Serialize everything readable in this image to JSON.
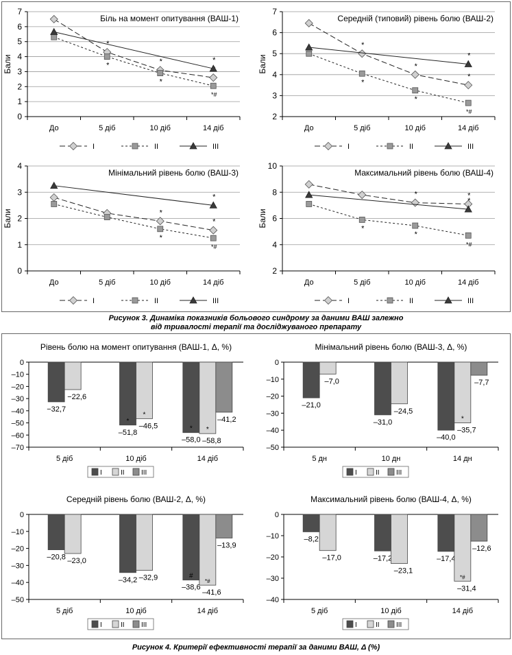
{
  "figure3": {
    "caption_line1": "Рисунок 3. Динаміка показників больового синдрому за даними ВАШ залежно",
    "caption_line2": "від тривалості терапії та досліджуваного препарату"
  },
  "figure4": {
    "caption": "Рисунок 4. Критерії ефективності терапії за даними ВАШ, Δ (%)"
  },
  "chart_data": [
    {
      "type": "line",
      "title": "Біль на момент опитування (ВАШ-1)",
      "ylabel": "Бали",
      "ylim": [
        0,
        7
      ],
      "yticks": [
        0,
        1,
        2,
        3,
        4,
        5,
        6,
        7
      ],
      "categories": [
        "До",
        "5 діб",
        "10 діб",
        "14 діб"
      ],
      "legend": "bottom",
      "grid": true,
      "series": [
        {
          "name": "I",
          "values": [
            6.5,
            4.3,
            3.1,
            2.6
          ],
          "marks": [
            "",
            "*",
            "*",
            "*"
          ]
        },
        {
          "name": "II",
          "values": [
            5.3,
            4.0,
            2.9,
            2.05
          ],
          "marks": [
            "",
            "*",
            "*",
            "*#"
          ]
        },
        {
          "name": "III",
          "values": [
            5.65,
            null,
            null,
            3.2
          ],
          "marks": [
            "",
            "",
            "",
            "*"
          ]
        }
      ]
    },
    {
      "type": "line",
      "title": "Середній (типовий) рівень болю (ВАШ-2)",
      "ylabel": "Бали",
      "ylim": [
        2,
        7
      ],
      "yticks": [
        2,
        3,
        4,
        5,
        6,
        7
      ],
      "categories": [
        "До",
        "5 діб",
        "10 діб",
        "14 діб"
      ],
      "legend": "bottom",
      "grid": true,
      "series": [
        {
          "name": "I",
          "values": [
            6.45,
            5.0,
            4.0,
            3.5
          ],
          "marks": [
            "",
            "*",
            "*",
            "*"
          ]
        },
        {
          "name": "II",
          "values": [
            5.0,
            4.05,
            3.25,
            2.65
          ],
          "marks": [
            "",
            "*",
            "*",
            "*#"
          ]
        },
        {
          "name": "III",
          "values": [
            5.3,
            null,
            null,
            4.5
          ],
          "marks": [
            "",
            "",
            "",
            "*"
          ]
        }
      ]
    },
    {
      "type": "line",
      "title": "Мінімальний рівень болю (ВАШ-3)",
      "ylabel": "Бали",
      "ylim": [
        0,
        4
      ],
      "yticks": [
        0,
        1,
        2,
        3,
        4
      ],
      "categories": [
        "До",
        "5 діб",
        "10 діб",
        "14 діб"
      ],
      "legend": "bottom",
      "grid": true,
      "series": [
        {
          "name": "I",
          "values": [
            2.8,
            2.2,
            1.9,
            1.55
          ],
          "marks": [
            "",
            "",
            "*",
            "*"
          ]
        },
        {
          "name": "II",
          "values": [
            2.55,
            2.05,
            1.6,
            1.25
          ],
          "marks": [
            "",
            "",
            "*",
            "*#"
          ]
        },
        {
          "name": "III",
          "values": [
            3.25,
            null,
            null,
            2.5
          ],
          "marks": [
            "",
            "",
            "",
            "*"
          ]
        }
      ]
    },
    {
      "type": "line",
      "title": "Максимальний рівень болю (ВАШ-4)",
      "ylabel": "Бали",
      "ylim": [
        2,
        10
      ],
      "yticks": [
        2,
        4,
        6,
        8,
        10
      ],
      "categories": [
        "До",
        "5 діб",
        "10 діб",
        "14 діб"
      ],
      "legend": "bottom",
      "grid": true,
      "series": [
        {
          "name": "I",
          "values": [
            8.6,
            7.8,
            7.2,
            7.1
          ],
          "marks": [
            "",
            "",
            "*",
            "*"
          ]
        },
        {
          "name": "II",
          "values": [
            7.1,
            5.9,
            5.45,
            4.7
          ],
          "marks": [
            "",
            "*",
            "*",
            "*#"
          ]
        },
        {
          "name": "III",
          "values": [
            7.8,
            null,
            null,
            6.7
          ],
          "marks": [
            "",
            "",
            "",
            "*"
          ]
        }
      ]
    },
    {
      "type": "bar",
      "title": "Рівень болю на момент опитування (ВАШ-1, Δ, %)",
      "ylim": [
        -70,
        0
      ],
      "yticks": [
        0,
        -10,
        -20,
        -30,
        -40,
        -50,
        -60,
        -70
      ],
      "categories": [
        "5 діб",
        "10 діб",
        "14 діб"
      ],
      "legend": "bottom",
      "series": [
        {
          "name": "I",
          "values": [
            -32.7,
            -51.8,
            -58.0
          ],
          "labels": [
            "−32,7",
            "–51,8",
            "–58,0"
          ],
          "marks": [
            "",
            "*",
            "*"
          ]
        },
        {
          "name": "II",
          "values": [
            -22.6,
            -46.5,
            -58.8
          ],
          "labels": [
            "−22,6",
            "–46,5",
            "–58,8"
          ],
          "marks": [
            "",
            "*",
            "*"
          ]
        },
        {
          "name": "III",
          "values": [
            null,
            null,
            -41.2
          ],
          "labels": [
            "",
            "",
            "–41,2"
          ],
          "marks": [
            "",
            "",
            ""
          ]
        }
      ]
    },
    {
      "type": "bar",
      "title": "Мінімальний рівень болю (ВАШ-3, Δ, %)",
      "ylim": [
        -50,
        0
      ],
      "yticks": [
        0,
        -10,
        -20,
        -30,
        -40,
        -50
      ],
      "categories": [
        "5 дн",
        "10 дн",
        "14 дн"
      ],
      "legend": "bottom",
      "series": [
        {
          "name": "I",
          "values": [
            -21.0,
            -31.0,
            -40.0
          ],
          "labels": [
            "–21,0",
            "–31,0",
            "–40,0"
          ],
          "marks": [
            "",
            "",
            ""
          ]
        },
        {
          "name": "II",
          "values": [
            -7.0,
            -24.5,
            -35.7
          ],
          "labels": [
            "–7,0",
            "–24,5",
            "–35,7"
          ],
          "marks": [
            "",
            "",
            "*"
          ]
        },
        {
          "name": "III",
          "values": [
            null,
            null,
            -7.7
          ],
          "labels": [
            "",
            "",
            "–7,7"
          ],
          "marks": [
            "",
            "",
            ""
          ]
        }
      ]
    },
    {
      "type": "bar",
      "title": "Середній рівень болю (ВАШ-2, Δ, %)",
      "ylim": [
        -50,
        0
      ],
      "yticks": [
        0,
        -10,
        -20,
        -30,
        -40,
        -50
      ],
      "categories": [
        "5 діб",
        "10 діб",
        "14 діб"
      ],
      "legend": "bottom",
      "series": [
        {
          "name": "I",
          "values": [
            -20.8,
            -34.2,
            -38.6
          ],
          "labels": [
            "–20,8",
            "–34,2",
            "–38,6"
          ],
          "marks": [
            "",
            "",
            "#"
          ]
        },
        {
          "name": "II",
          "values": [
            -23.0,
            -32.9,
            -41.6
          ],
          "labels": [
            "–23,0",
            "–32,9",
            "–41,6"
          ],
          "marks": [
            "",
            "",
            "*#"
          ]
        },
        {
          "name": "III",
          "values": [
            null,
            null,
            -13.9
          ],
          "labels": [
            "",
            "",
            "–13,9"
          ],
          "marks": [
            "",
            "",
            ""
          ]
        }
      ]
    },
    {
      "type": "bar",
      "title": "Максимальний рівень болю (ВАШ-4, Δ, %)",
      "ylim": [
        -40,
        0
      ],
      "yticks": [
        0,
        -10,
        -20,
        -30,
        -40
      ],
      "categories": [
        "5 діб",
        "10 діб",
        "14 діб"
      ],
      "legend": "bottom",
      "series": [
        {
          "name": "I",
          "values": [
            -8.2,
            -17.2,
            -17.4
          ],
          "labels": [
            "–8,2",
            "–17,2",
            "–17,4"
          ],
          "marks": [
            "",
            "",
            ""
          ]
        },
        {
          "name": "II",
          "values": [
            -17.0,
            -23.1,
            -31.4
          ],
          "labels": [
            "–17,0",
            "–23,1",
            "–31,4"
          ],
          "marks": [
            "",
            "",
            "*#"
          ]
        },
        {
          "name": "III",
          "values": [
            null,
            null,
            -12.6
          ],
          "labels": [
            "",
            "",
            "–12,6"
          ],
          "marks": [
            "",
            "",
            ""
          ]
        }
      ]
    }
  ]
}
